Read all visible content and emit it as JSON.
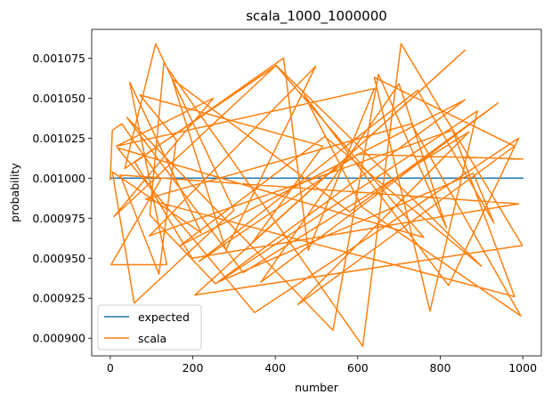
{
  "chart_data": {
    "type": "line",
    "title": "scala_1000_1000000",
    "xlabel": "number",
    "ylabel": "probability",
    "xlim": [
      -45,
      1045
    ],
    "ylim": [
      0.000889,
      0.001093
    ],
    "x_ticks": [
      0,
      200,
      400,
      600,
      800,
      1000
    ],
    "x_tick_labels": [
      "0",
      "200",
      "400",
      "600",
      "800",
      "1000"
    ],
    "y_ticks": [
      0.0009,
      0.000925,
      0.00095,
      0.000975,
      0.001,
      0.001025,
      0.00105,
      0.001075
    ],
    "y_tick_labels": [
      "0.000900",
      "0.000925",
      "0.000950",
      "0.000975",
      "0.001000",
      "0.001025",
      "0.001050",
      "0.001075"
    ],
    "grid": false,
    "legend_position": "lower left",
    "series": [
      {
        "name": "expected",
        "color": "#1f77b4",
        "x": [
          0,
          1000
        ],
        "y": [
          0.001,
          0.001
        ]
      },
      {
        "name": "scala",
        "color": "#ff7f0e",
        "x": [
          0,
          5,
          28,
          122,
          2,
          137,
          47,
          220,
          5,
          58,
          300,
          110,
          35,
          400,
          9,
          250,
          15,
          640,
          480,
          420,
          60,
          198,
          990,
          24,
          118,
          160,
          72,
          515,
          345,
          860,
          205,
          999,
          705,
          612,
          130,
          96,
          255,
          890,
          775,
          640,
          980,
          455,
          870,
          322,
          40,
          540,
          650,
          815,
          700,
          365,
          940,
          580,
          150,
          280,
          498,
          95,
          830,
          980,
          85,
          730,
          995,
          610,
          470,
          820,
          990,
          350,
          17,
          760,
          400,
          900,
          520,
          170,
          860,
          260,
          880,
          930,
          745,
          215,
          600,
          1000
        ],
        "y": [
          0.000999,
          0.00103,
          0.001034,
          0.000999,
          0.000946,
          0.000946,
          0.00106,
          0.000966,
          0.001004,
          0.000922,
          0.00098,
          0.001084,
          0.001006,
          0.00107,
          0.000976,
          0.00105,
          0.00102,
          0.001056,
          0.000955,
          0.001075,
          0.00101,
          0.00095,
          0.000984,
          0.001002,
          0.00094,
          0.001024,
          0.001052,
          0.00102,
          0.00096,
          0.00108,
          0.000927,
          0.000958,
          0.001084,
          0.000895,
          0.001072,
          0.000977,
          0.000934,
          0.001042,
          0.000917,
          0.001063,
          0.00102,
          0.000921,
          0.001029,
          0.000941,
          0.001038,
          0.000905,
          0.001065,
          0.000969,
          0.001059,
          0.000935,
          0.001047,
          0.000979,
          0.001062,
          0.000955,
          0.00107,
          0.000964,
          0.00103,
          0.000926,
          0.000987,
          0.001034,
          0.000914,
          0.000982,
          0.001052,
          0.000933,
          0.001025,
          0.000916,
          0.001019,
          0.000963,
          0.001071,
          0.000945,
          0.001026,
          0.000958,
          0.001049,
          0.000935,
          0.001003,
          0.000972,
          0.001055,
          0.000948,
          0.001015,
          0.001012
        ]
      }
    ]
  }
}
